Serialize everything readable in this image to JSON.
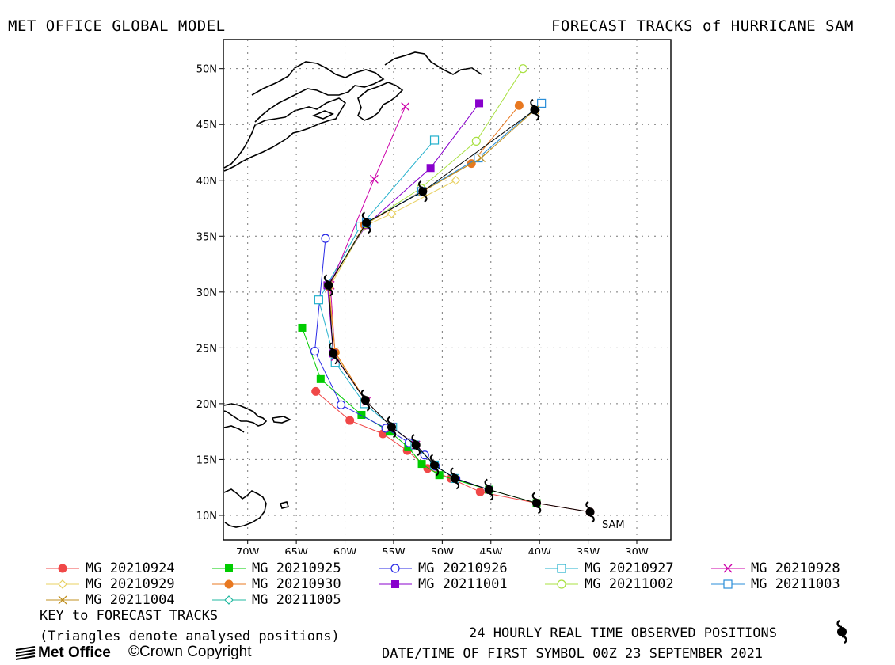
{
  "header": {
    "title_left": "MET OFFICE GLOBAL MODEL",
    "title_right": "FORECAST TRACKS of HURRICANE SAM"
  },
  "map": {
    "lon_ticks": [
      -70,
      -65,
      -60,
      -55,
      -50,
      -45,
      -40,
      -35,
      -30
    ],
    "lon_labels": [
      "70W",
      "65W",
      "60W",
      "55W",
      "50W",
      "45W",
      "40W",
      "35W",
      "30W"
    ],
    "lat_ticks": [
      10,
      15,
      20,
      25,
      30,
      35,
      40,
      45,
      50
    ],
    "lat_labels": [
      "10N",
      "15N",
      "20N",
      "25N",
      "30N",
      "35N",
      "40N",
      "45N",
      "50N"
    ],
    "lon_range": [
      -72.5,
      -26.5
    ],
    "lat_range": [
      7.8,
      52.6
    ],
    "storm_label": "SAM",
    "grid": true
  },
  "colors": {
    "MG 20210924": "#f04848",
    "MG 20210925": "#00cc00",
    "MG 20210926": "#2a2ae6",
    "MG 20210927": "#22b0cc",
    "MG 20210928": "#cc00aa",
    "MG 20210929": "#e8d060",
    "MG 20210930": "#e87820",
    "MG 20211001": "#8800cc",
    "MG 20211002": "#a8e040",
    "MG 20211003": "#2a8ed8",
    "MG 20211004": "#c09020",
    "MG 20211005": "#20b8a0",
    "observed": "#000000"
  },
  "chart_data": {
    "type": "scatter",
    "observed_track": [
      [
        -34.8,
        10.3
      ],
      [
        -40.3,
        11.1
      ],
      [
        -45.2,
        12.3
      ],
      [
        -48.7,
        13.3
      ],
      [
        -50.8,
        14.5
      ],
      [
        -52.7,
        16.3
      ],
      [
        -55.2,
        17.9
      ],
      [
        -57.9,
        20.3
      ],
      [
        -61.2,
        24.5
      ],
      [
        -61.7,
        30.6
      ],
      [
        -57.8,
        36.2
      ],
      [
        -52.0,
        39.0
      ],
      [
        -40.5,
        46.3
      ]
    ],
    "series": [
      {
        "name": "MG 20210924",
        "marker": "circle-filled",
        "points": [
          [
            -34.8,
            10.3
          ],
          [
            -40.3,
            11.1
          ],
          [
            -46.1,
            12.1
          ],
          [
            -49.1,
            13.3
          ],
          [
            -51.5,
            14.2
          ],
          [
            -53.6,
            15.8
          ],
          [
            -56.1,
            17.3
          ],
          [
            -59.5,
            18.5
          ],
          [
            -63.0,
            21.1
          ]
        ]
      },
      {
        "name": "MG 20210925",
        "marker": "square-filled",
        "points": [
          [
            -40.3,
            11.1
          ],
          [
            -45.2,
            12.3
          ],
          [
            -50.3,
            13.6
          ],
          [
            -52.1,
            14.6
          ],
          [
            -53.5,
            16.1
          ],
          [
            -55.4,
            17.5
          ],
          [
            -58.3,
            19.0
          ],
          [
            -62.5,
            22.2
          ],
          [
            -64.4,
            26.8
          ]
        ]
      },
      {
        "name": "MG 20210926",
        "marker": "circle-open",
        "points": [
          [
            -45.2,
            12.3
          ],
          [
            -48.6,
            13.3
          ],
          [
            -50.7,
            14.4
          ],
          [
            -51.8,
            15.4
          ],
          [
            -53.4,
            16.5
          ],
          [
            -55.8,
            17.8
          ],
          [
            -60.4,
            19.9
          ],
          [
            -63.1,
            24.7
          ],
          [
            -62.0,
            34.8
          ]
        ]
      },
      {
        "name": "MG 20210927",
        "marker": "square-open",
        "points": [
          [
            -48.7,
            13.3
          ],
          [
            -50.8,
            14.5
          ],
          [
            -52.8,
            16.3
          ],
          [
            -55.1,
            17.9
          ],
          [
            -58.0,
            20.0
          ],
          [
            -61.0,
            23.7
          ],
          [
            -62.7,
            29.3
          ],
          [
            -58.4,
            35.9
          ],
          [
            -50.8,
            43.6
          ]
        ]
      },
      {
        "name": "MG 20210928",
        "marker": "x",
        "points": [
          [
            -52.7,
            16.3
          ],
          [
            -55.2,
            17.9
          ],
          [
            -57.8,
            20.2
          ],
          [
            -61.0,
            24.2
          ],
          [
            -61.5,
            30.6
          ],
          [
            -57.0,
            40.1
          ],
          [
            -53.8,
            46.6
          ]
        ]
      },
      {
        "name": "MG 20210929",
        "marker": "diamond-open",
        "points": [
          [
            -55.2,
            17.9
          ],
          [
            -57.9,
            20.3
          ],
          [
            -61.0,
            24.5
          ],
          [
            -61.6,
            30.4
          ],
          [
            -58.0,
            35.9
          ],
          [
            -55.2,
            37.0
          ],
          [
            -48.6,
            40.0
          ]
        ]
      },
      {
        "name": "MG 20210930",
        "marker": "circle-filled",
        "points": [
          [
            -57.9,
            20.3
          ],
          [
            -61.0,
            24.6
          ],
          [
            -61.7,
            30.5
          ],
          [
            -58.0,
            36.0
          ],
          [
            -52.0,
            39.1
          ],
          [
            -47.0,
            41.5
          ],
          [
            -42.1,
            46.7
          ]
        ]
      },
      {
        "name": "MG 20211001",
        "marker": "square-filled",
        "points": [
          [
            -61.2,
            24.5
          ],
          [
            -61.8,
            30.6
          ],
          [
            -57.8,
            36.0
          ],
          [
            -51.2,
            41.1
          ],
          [
            -46.2,
            46.9
          ]
        ]
      },
      {
        "name": "MG 20211002",
        "marker": "circle-open",
        "points": [
          [
            -61.7,
            30.6
          ],
          [
            -57.8,
            36.1
          ],
          [
            -52.2,
            39.3
          ],
          [
            -46.5,
            43.5
          ],
          [
            -41.7,
            50.0
          ]
        ]
      },
      {
        "name": "MG 20211003",
        "marker": "square-open",
        "points": [
          [
            -57.8,
            36.2
          ],
          [
            -52.1,
            39.0
          ],
          [
            -46.3,
            42.0
          ],
          [
            -39.8,
            46.9
          ]
        ]
      },
      {
        "name": "MG 20211004",
        "marker": "x",
        "points": [
          [
            -52.0,
            39.0
          ],
          [
            -46.0,
            42.0
          ],
          [
            -40.5,
            46.3
          ]
        ]
      },
      {
        "name": "MG 20211005",
        "marker": "diamond-open",
        "points": [
          [
            -40.5,
            46.3
          ]
        ]
      }
    ]
  },
  "legend": {
    "items": [
      {
        "label": "MG 20210924",
        "marker": "circle-filled"
      },
      {
        "label": "MG 20210925",
        "marker": "square-filled"
      },
      {
        "label": "MG 20210926",
        "marker": "circle-open"
      },
      {
        "label": "MG 20210927",
        "marker": "square-open"
      },
      {
        "label": "MG 20210928",
        "marker": "x"
      },
      {
        "label": "MG 20210929",
        "marker": "diamond-open"
      },
      {
        "label": "MG 20210930",
        "marker": "circle-filled"
      },
      {
        "label": "MG 20211001",
        "marker": "square-filled"
      },
      {
        "label": "MG 20211002",
        "marker": "circle-open"
      },
      {
        "label": "MG 20211003",
        "marker": "square-open"
      },
      {
        "label": "MG 20211004",
        "marker": "x"
      },
      {
        "label": "MG 20211005",
        "marker": "diamond-open"
      }
    ]
  },
  "footer": {
    "key_title": "KEY to FORECAST TRACKS",
    "key_note": "(Triangles denote analysed positions)",
    "observed_note": "24 HOURLY REAL TIME OBSERVED POSITIONS",
    "first_symbol": "DATE/TIME OF FIRST SYMBOL 00Z 23 SEPTEMBER 2021",
    "logo_text": "Met Office",
    "copyright": "©Crown Copyright"
  }
}
